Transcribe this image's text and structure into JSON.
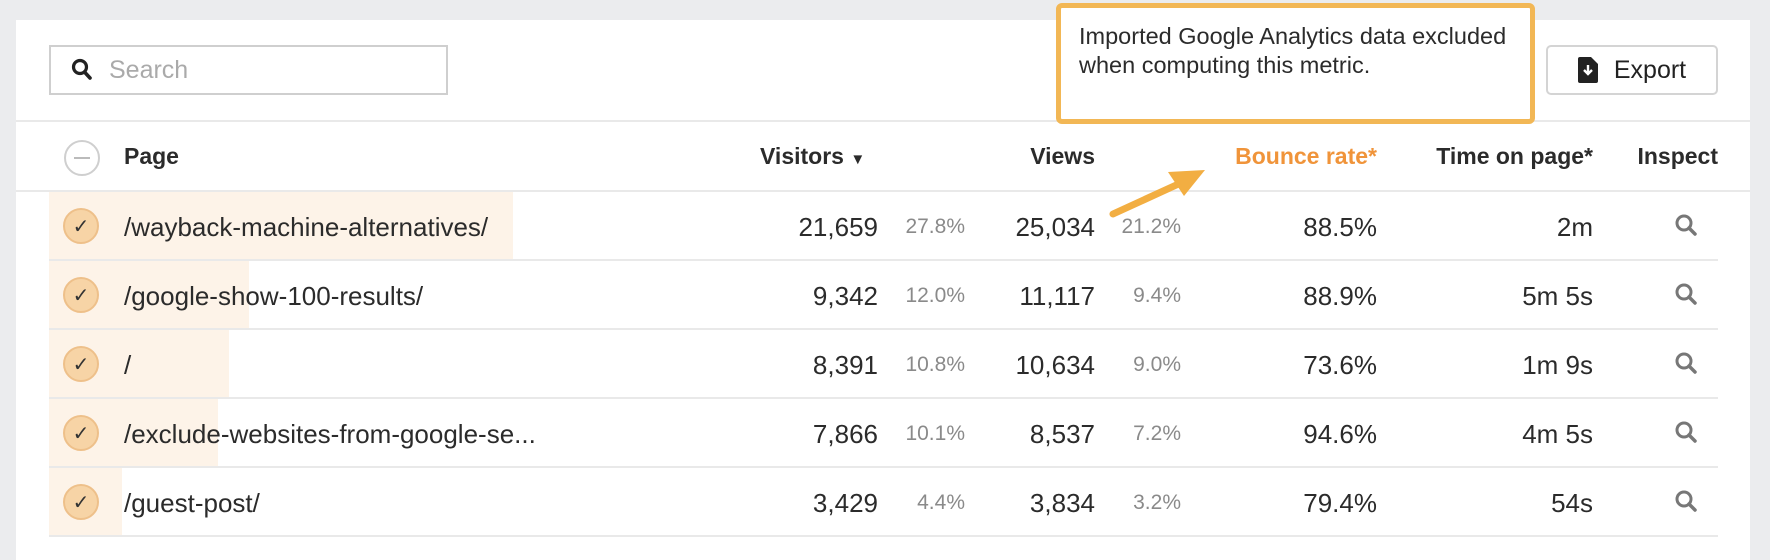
{
  "search": {
    "placeholder": "Search",
    "icon": "search-icon"
  },
  "toolbar": {
    "export_label": "Export",
    "export_icon": "file-download-icon"
  },
  "tooltip": {
    "text": "Imported Google Analytics data excluded when computing this metric."
  },
  "columns": {
    "page": "Page",
    "visitors": "Visitors",
    "views": "Views",
    "bounce_rate": "Bounce rate*",
    "time_on_page": "Time on page*",
    "inspect": "Inspect"
  },
  "colors": {
    "accent": "#f0943a",
    "tooltip_border": "#f2b755",
    "bar": "#fdf3e8",
    "check": "#f7d4a6"
  },
  "rows": [
    {
      "page": "/wayback-machine-alternatives/",
      "visitors": "21,659",
      "visitors_pct": "27.8%",
      "views": "25,034",
      "views_pct": "21.2%",
      "bounce_rate": "88.5%",
      "time_on_page": "2m",
      "bar_share": 27.8
    },
    {
      "page": "/google-show-100-results/",
      "visitors": "9,342",
      "visitors_pct": "12.0%",
      "views": "11,117",
      "views_pct": "9.4%",
      "bounce_rate": "88.9%",
      "time_on_page": "5m 5s",
      "bar_share": 12.0
    },
    {
      "page": "/",
      "visitors": "8,391",
      "visitors_pct": "10.8%",
      "views": "10,634",
      "views_pct": "9.0%",
      "bounce_rate": "73.6%",
      "time_on_page": "1m 9s",
      "bar_share": 10.8
    },
    {
      "page": "/exclude-websites-from-google-se...",
      "visitors": "7,866",
      "visitors_pct": "10.1%",
      "views": "8,537",
      "views_pct": "7.2%",
      "bounce_rate": "94.6%",
      "time_on_page": "4m 5s",
      "bar_share": 10.1
    },
    {
      "page": "/guest-post/",
      "visitors": "3,429",
      "visitors_pct": "4.4%",
      "views": "3,834",
      "views_pct": "3.2%",
      "bounce_rate": "79.4%",
      "time_on_page": "54s",
      "bar_share": 4.4
    }
  ]
}
